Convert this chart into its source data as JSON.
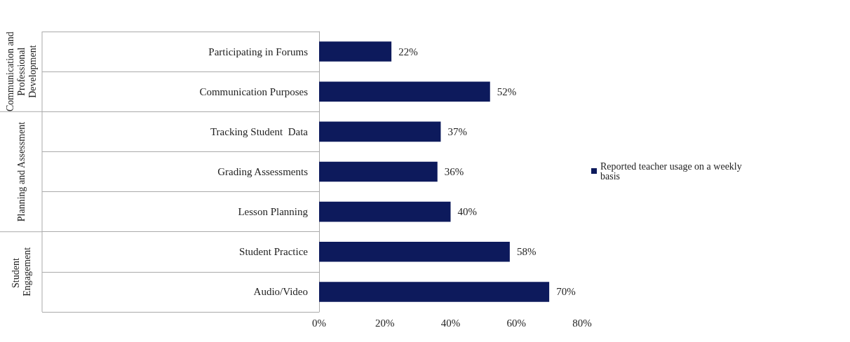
{
  "chart_data": {
    "type": "bar",
    "orientation": "horizontal",
    "categories": [
      "Participating in Forums",
      "Communication Purposes",
      "Tracking Student  Data",
      "Grading Assessments",
      "Lesson Planning",
      "Student Practice",
      "Audio/Video"
    ],
    "series": [
      {
        "name": "Reported teacher usage on a weekly basis",
        "color": "#0d1a5c",
        "values": [
          22,
          52,
          37,
          36,
          40,
          58,
          70
        ],
        "value_labels": [
          "22%",
          "52%",
          "37%",
          "36%",
          "40%",
          "58%",
          "70%"
        ]
      }
    ],
    "xlim": [
      0,
      80
    ],
    "xticks": [
      {
        "value": 0,
        "label": "0%"
      },
      {
        "value": 20,
        "label": "20%"
      },
      {
        "value": 40,
        "label": "40%"
      },
      {
        "value": 60,
        "label": "60%"
      },
      {
        "value": 80,
        "label": "80%"
      }
    ],
    "annotations": [
      "Communication and Professional Development",
      "Planning and Assessment",
      "Student Engagement"
    ],
    "grid": false,
    "legend": "right"
  }
}
